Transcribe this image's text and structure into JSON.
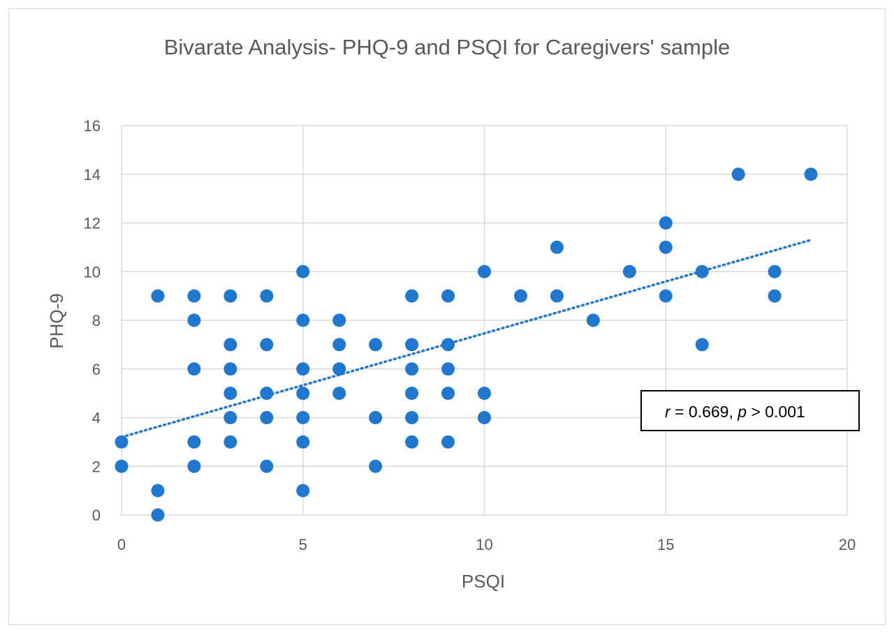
{
  "chart_data": {
    "type": "scatter",
    "title": "Bivarate Analysis- PHQ-9 and PSQI for Caregivers' sample",
    "xlabel": "PSQI",
    "ylabel": "PHQ-9",
    "xlim": [
      0,
      20
    ],
    "ylim": [
      0,
      16
    ],
    "x_ticks": [
      0,
      5,
      10,
      15,
      20
    ],
    "y_ticks": [
      0,
      2,
      4,
      6,
      8,
      10,
      12,
      14,
      16
    ],
    "grid": true,
    "marker_color": "#1f77cf",
    "trendline": {
      "style": "dotted",
      "from": [
        0,
        3.2
      ],
      "to": [
        19,
        11.3
      ]
    },
    "annotation": {
      "r_symbol": "r",
      "r_text": " = 0.669, ",
      "p_symbol": "p",
      "p_text": " > 0.001",
      "position": "right-middle"
    },
    "series": [
      {
        "name": "Caregivers",
        "points": [
          [
            0,
            3
          ],
          [
            0,
            2
          ],
          [
            1,
            9
          ],
          [
            1,
            1
          ],
          [
            1,
            0
          ],
          [
            2,
            9
          ],
          [
            2,
            8
          ],
          [
            2,
            6
          ],
          [
            2,
            3
          ],
          [
            2,
            2
          ],
          [
            3,
            9
          ],
          [
            3,
            7
          ],
          [
            3,
            6
          ],
          [
            3,
            5
          ],
          [
            3,
            4
          ],
          [
            3,
            3
          ],
          [
            4,
            9
          ],
          [
            4,
            7
          ],
          [
            4,
            5
          ],
          [
            4,
            4
          ],
          [
            4,
            2
          ],
          [
            5,
            10
          ],
          [
            5,
            8
          ],
          [
            5,
            6
          ],
          [
            5,
            5
          ],
          [
            5,
            4
          ],
          [
            5,
            3
          ],
          [
            5,
            1
          ],
          [
            6,
            8
          ],
          [
            6,
            7
          ],
          [
            6,
            6
          ],
          [
            6,
            5
          ],
          [
            7,
            7
          ],
          [
            7,
            4
          ],
          [
            7,
            2
          ],
          [
            8,
            9
          ],
          [
            8,
            7
          ],
          [
            8,
            6
          ],
          [
            8,
            5
          ],
          [
            8,
            4
          ],
          [
            8,
            3
          ],
          [
            9,
            9
          ],
          [
            9,
            7
          ],
          [
            9,
            6
          ],
          [
            9,
            5
          ],
          [
            9,
            3
          ],
          [
            10,
            10
          ],
          [
            10,
            5
          ],
          [
            10,
            4
          ],
          [
            11,
            9
          ],
          [
            12,
            11
          ],
          [
            12,
            9
          ],
          [
            13,
            8
          ],
          [
            14,
            10
          ],
          [
            15,
            12
          ],
          [
            15,
            11
          ],
          [
            15,
            9
          ],
          [
            16,
            10
          ],
          [
            16,
            7
          ],
          [
            17,
            14
          ],
          [
            18,
            10
          ],
          [
            18,
            9
          ],
          [
            19,
            14
          ]
        ]
      }
    ]
  }
}
